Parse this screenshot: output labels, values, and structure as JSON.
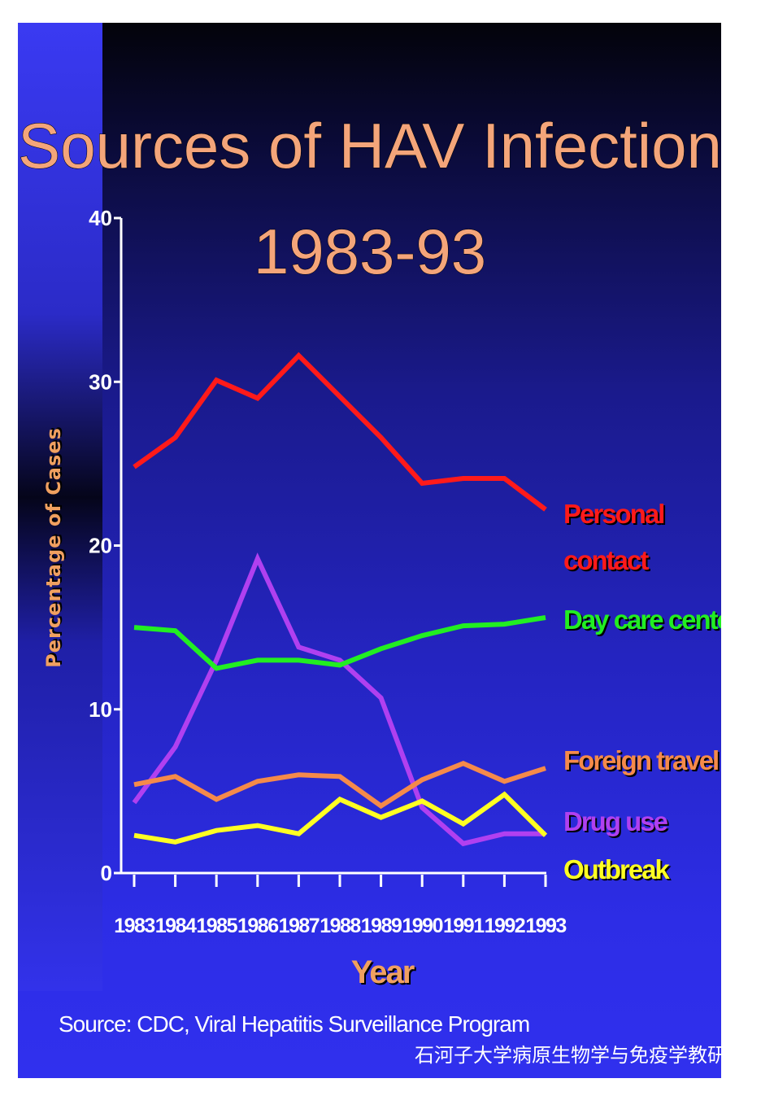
{
  "title_line1": "Sources of HAV Infection",
  "title_line2": "1983-93",
  "source": "Source: CDC, Viral Hepatitis Surveillance Program",
  "watermark": "石河子大学病原生物学与免疫学教研室",
  "chart_data": {
    "type": "line",
    "title": "Sources of HAV Infection 1983-93",
    "xlabel": "Year",
    "ylabel": "Percentage of Cases",
    "ylim": [
      0,
      40
    ],
    "yticks": [
      "0",
      "10",
      "20",
      "30",
      "40"
    ],
    "x": [
      "1983",
      "1984",
      "1985",
      "1986",
      "1987",
      "1988",
      "1989",
      "1990",
      "1991",
      "1992",
      "1993"
    ],
    "grid": false,
    "legend": "right, inline labels",
    "series": [
      {
        "name": "Personal contact",
        "label_lines": [
          "Personal",
          "contact"
        ],
        "color": "#ff1a1a",
        "values": [
          24.8,
          26.6,
          30.1,
          29.0,
          31.6,
          29.1,
          26.6,
          23.8,
          24.1,
          24.1,
          22.2
        ]
      },
      {
        "name": "Day care center",
        "label_lines": [
          "Day care center"
        ],
        "color": "#22ee22",
        "values": [
          15.0,
          14.8,
          12.5,
          13.0,
          13.0,
          12.7,
          13.7,
          14.5,
          15.1,
          15.2,
          15.6
        ]
      },
      {
        "name": "Foreign travel",
        "label_lines": [
          "Foreign travel"
        ],
        "color": "#f58a4a",
        "values": [
          5.4,
          5.9,
          4.5,
          5.6,
          6.0,
          5.9,
          4.1,
          5.7,
          6.7,
          5.6,
          6.4
        ]
      },
      {
        "name": "Drug use",
        "label_lines": [
          "Drug use"
        ],
        "color": "#b040f0",
        "values": [
          4.3,
          7.7,
          13.0,
          19.2,
          13.8,
          13.0,
          10.7,
          4.0,
          1.8,
          2.4,
          2.4
        ]
      },
      {
        "name": "Outbreak",
        "label_lines": [
          "Outbreak"
        ],
        "color": "#ffff22",
        "values": [
          2.3,
          1.9,
          2.6,
          2.9,
          2.4,
          4.5,
          3.4,
          4.4,
          3.0,
          4.8,
          2.3
        ]
      }
    ]
  }
}
